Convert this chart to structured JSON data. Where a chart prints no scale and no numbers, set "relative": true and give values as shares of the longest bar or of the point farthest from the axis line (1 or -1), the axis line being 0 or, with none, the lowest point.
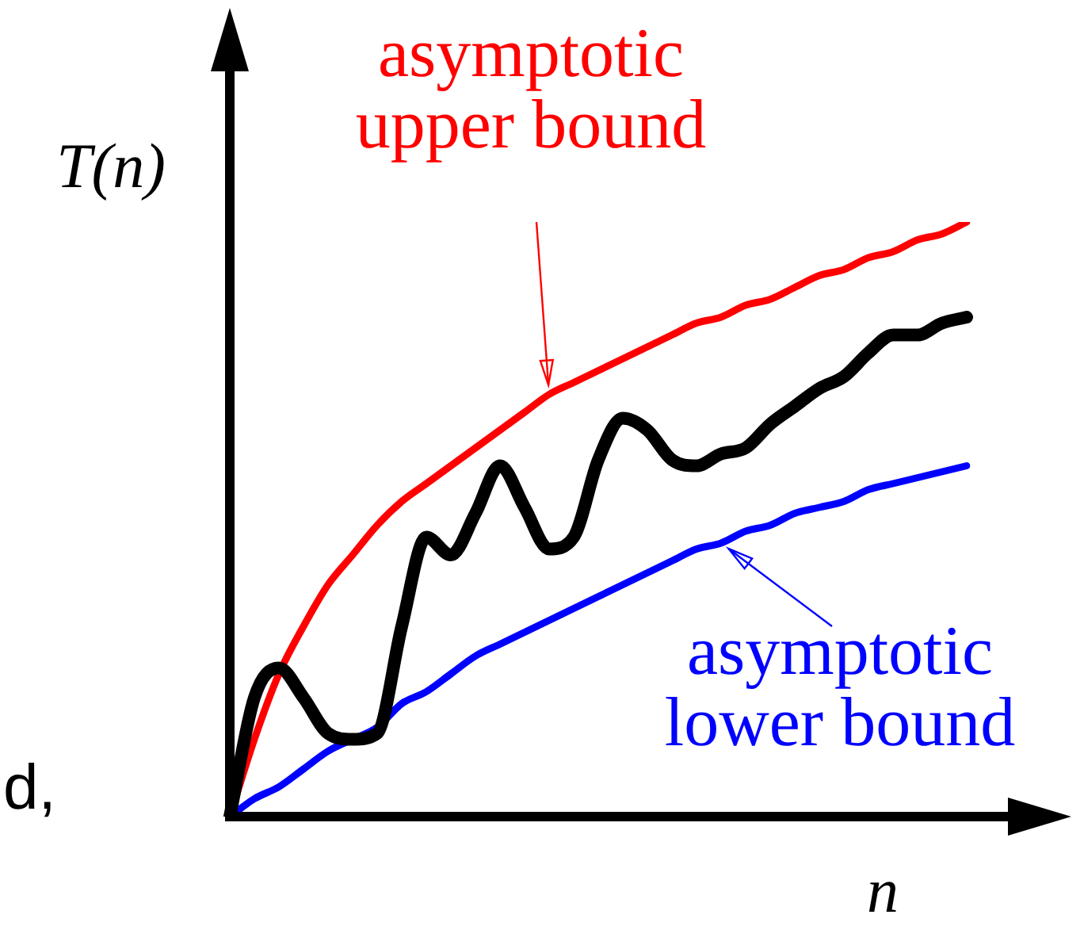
{
  "chart_data": {
    "type": "line",
    "relative": true,
    "xlabel": "n",
    "ylabel": "T(n)",
    "legend": false,
    "marker": "none",
    "annotations": [
      "d,"
    ],
    "categories": [
      null,
      null,
      null,
      null,
      null,
      null,
      null,
      null,
      null,
      null,
      null,
      null,
      null,
      null,
      null,
      null,
      null,
      null,
      null,
      null,
      null,
      null,
      null,
      null,
      null,
      null,
      null,
      null,
      null,
      null,
      null
    ],
    "series": [
      {
        "name": "asymptotic upper bound",
        "color": "#ff0000",
        "values": [
          0,
          0.13,
          0.24,
          0.32,
          0.39,
          0.44,
          0.49,
          0.53,
          0.56,
          0.59,
          0.62,
          0.65,
          0.68,
          0.71,
          0.73,
          0.75,
          0.77,
          0.79,
          0.81,
          0.83,
          0.84,
          0.86,
          0.87,
          0.89,
          0.91,
          0.92,
          0.94,
          0.95,
          0.97,
          0.98,
          1
        ]
      },
      {
        "color": "#000000",
        "values": [
          0,
          0.2,
          0.25,
          0.2,
          0.14,
          0.13,
          0.14,
          0.32,
          0.47,
          0.44,
          0.51,
          0.59,
          0.52,
          0.45,
          0.47,
          0.6,
          0.67,
          0.65,
          0.6,
          0.59,
          0.61,
          0.62,
          0.66,
          0.69,
          0.72,
          0.74,
          0.78,
          0.81,
          0.81,
          0.83,
          0.84
        ]
      },
      {
        "name": "asymptotic lower bound",
        "color": "#0000ff",
        "values": [
          0,
          0.03,
          0.05,
          0.08,
          0.11,
          0.13,
          0.15,
          0.19,
          0.21,
          0.24,
          0.27,
          0.29,
          0.31,
          0.33,
          0.35,
          0.37,
          0.39,
          0.41,
          0.43,
          0.45,
          0.46,
          0.48,
          0.49,
          0.51,
          0.52,
          0.53,
          0.55,
          0.56,
          0.57,
          0.58,
          0.59
        ]
      }
    ]
  }
}
